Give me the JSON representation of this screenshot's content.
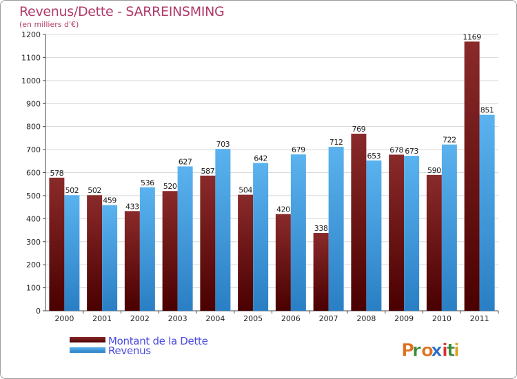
{
  "title": "Revenus/Dette - SARREINSMING",
  "subtitle": "(en milliers d'€)",
  "brand": "Proxiti",
  "colors": {
    "dette": "#7a1a1a",
    "revenus": "#3f9de0",
    "title": "#b03a6a",
    "legend_text": "#4a4ae0"
  },
  "chart_data": {
    "type": "bar",
    "title": "Revenus/Dette - SARREINSMING",
    "subtitle": "(en milliers d'€)",
    "categories": [
      "2000",
      "2001",
      "2002",
      "2003",
      "2004",
      "2005",
      "2006",
      "2007",
      "2008",
      "2009",
      "2010",
      "2011"
    ],
    "series": [
      {
        "name": "Montant de la Dette",
        "values": [
          578,
          502,
          433,
          520,
          587,
          504,
          420,
          338,
          769,
          678,
          590,
          1169
        ]
      },
      {
        "name": "Revenus",
        "values": [
          502,
          459,
          536,
          627,
          703,
          642,
          679,
          712,
          653,
          673,
          722,
          851
        ]
      }
    ],
    "y_ticks": [
      0,
      100,
      200,
      300,
      400,
      500,
      600,
      700,
      800,
      900,
      1000,
      1100,
      1200
    ],
    "ylim": [
      0,
      1200
    ],
    "grid": true,
    "legend_position": "bottom-left"
  }
}
